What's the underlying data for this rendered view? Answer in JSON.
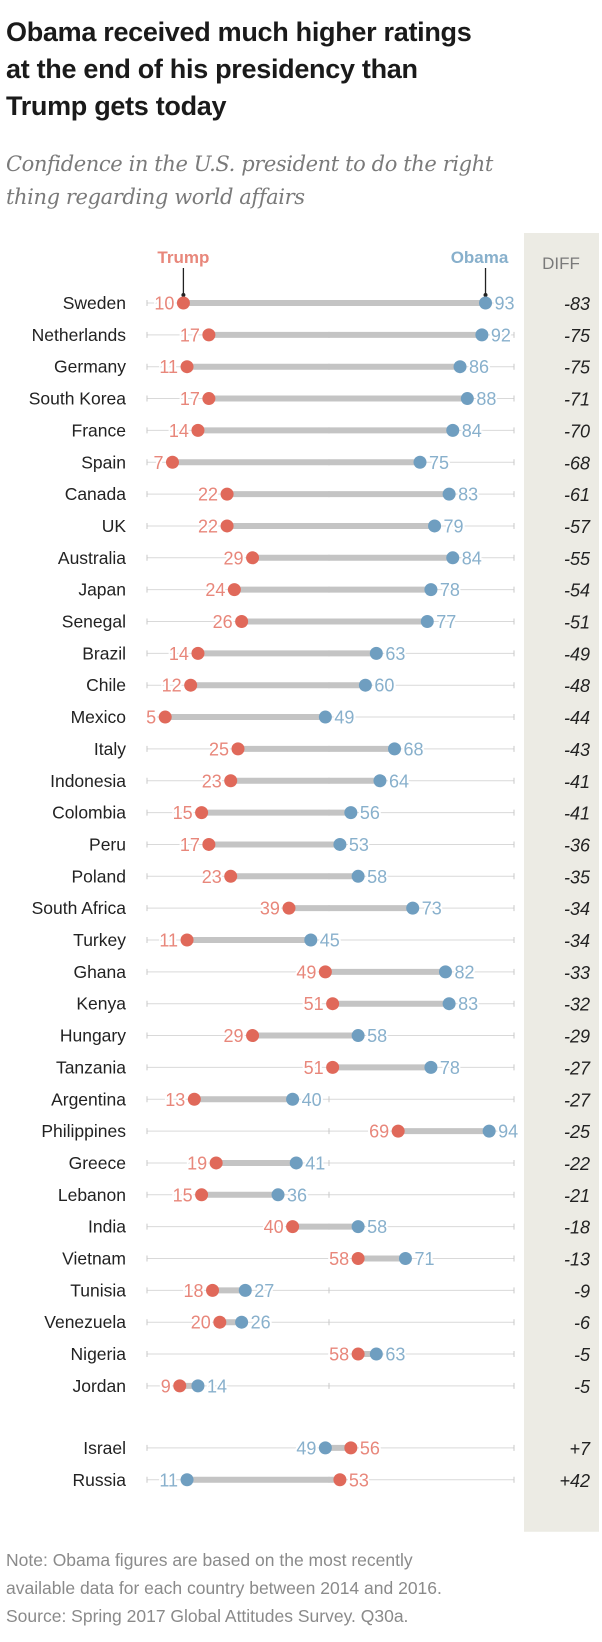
{
  "title": "Obama received much higher ratings at the end of his presidency than Trump gets today",
  "title_lines": [
    "Obama received much higher ratings",
    "at the end of his presidency than",
    "Trump gets today"
  ],
  "subtitle_lines": [
    "Confidence in the U.S. president to do the right",
    "thing regarding world affairs"
  ],
  "note_lines": [
    "Note: Obama figures are based on the most recently",
    "available data for each country between 2014 and 2016.",
    "Source: Spring 2017 Global Attitudes Survey. Q30a."
  ],
  "colors": {
    "trump": "#e0695a",
    "obama": "#6f9ec0",
    "trump_label": "#e8877b",
    "obama_label": "#88b0cc",
    "bar": "#c4c4c4",
    "axis": "#d9d9d9",
    "diff_panel": "#ecebe4"
  },
  "chart_data": {
    "type": "dot-range",
    "title": "Obama received much higher ratings at the end of his presidency than Trump gets today",
    "subtitle": "Confidence in the U.S. president to do the right thing regarding world affairs",
    "xlim": [
      0,
      100
    ],
    "series_names": [
      "Trump",
      "Obama"
    ],
    "diff_header": "DIFF",
    "legend": "top (labels pointing to first row)",
    "rows": [
      {
        "country": "Sweden",
        "trump": 10,
        "obama": 93,
        "diff": "-83"
      },
      {
        "country": "Netherlands",
        "trump": 17,
        "obama": 92,
        "diff": "-75"
      },
      {
        "country": "Germany",
        "trump": 11,
        "obama": 86,
        "diff": "-75"
      },
      {
        "country": "South Korea",
        "trump": 17,
        "obama": 88,
        "diff": "-71"
      },
      {
        "country": "France",
        "trump": 14,
        "obama": 84,
        "diff": "-70"
      },
      {
        "country": "Spain",
        "trump": 7,
        "obama": 75,
        "diff": "-68"
      },
      {
        "country": "Canada",
        "trump": 22,
        "obama": 83,
        "diff": "-61"
      },
      {
        "country": "UK",
        "trump": 22,
        "obama": 79,
        "diff": "-57"
      },
      {
        "country": "Australia",
        "trump": 29,
        "obama": 84,
        "diff": "-55"
      },
      {
        "country": "Japan",
        "trump": 24,
        "obama": 78,
        "diff": "-54"
      },
      {
        "country": "Senegal",
        "trump": 26,
        "obama": 77,
        "diff": "-51"
      },
      {
        "country": "Brazil",
        "trump": 14,
        "obama": 63,
        "diff": "-49"
      },
      {
        "country": "Chile",
        "trump": 12,
        "obama": 60,
        "diff": "-48"
      },
      {
        "country": "Mexico",
        "trump": 5,
        "obama": 49,
        "diff": "-44"
      },
      {
        "country": "Italy",
        "trump": 25,
        "obama": 68,
        "diff": "-43"
      },
      {
        "country": "Indonesia",
        "trump": 23,
        "obama": 64,
        "diff": "-41"
      },
      {
        "country": "Colombia",
        "trump": 15,
        "obama": 56,
        "diff": "-41"
      },
      {
        "country": "Peru",
        "trump": 17,
        "obama": 53,
        "diff": "-36"
      },
      {
        "country": "Poland",
        "trump": 23,
        "obama": 58,
        "diff": "-35"
      },
      {
        "country": "South Africa",
        "trump": 39,
        "obama": 73,
        "diff": "-34"
      },
      {
        "country": "Turkey",
        "trump": 11,
        "obama": 45,
        "diff": "-34"
      },
      {
        "country": "Ghana",
        "trump": 49,
        "obama": 82,
        "diff": "-33"
      },
      {
        "country": "Kenya",
        "trump": 51,
        "obama": 83,
        "diff": "-32"
      },
      {
        "country": "Hungary",
        "trump": 29,
        "obama": 58,
        "diff": "-29"
      },
      {
        "country": "Tanzania",
        "trump": 51,
        "obama": 78,
        "diff": "-27"
      },
      {
        "country": "Argentina",
        "trump": 13,
        "obama": 40,
        "diff": "-27"
      },
      {
        "country": "Philippines",
        "trump": 69,
        "obama": 94,
        "diff": "-25"
      },
      {
        "country": "Greece",
        "trump": 19,
        "obama": 41,
        "diff": "-22"
      },
      {
        "country": "Lebanon",
        "trump": 15,
        "obama": 36,
        "diff": "-21"
      },
      {
        "country": "India",
        "trump": 40,
        "obama": 58,
        "diff": "-18"
      },
      {
        "country": "Vietnam",
        "trump": 58,
        "obama": 71,
        "diff": "-13"
      },
      {
        "country": "Tunisia",
        "trump": 18,
        "obama": 27,
        "diff": "-9"
      },
      {
        "country": "Venezuela",
        "trump": 20,
        "obama": 26,
        "diff": "-6"
      },
      {
        "country": "Nigeria",
        "trump": 58,
        "obama": 63,
        "diff": "-5"
      },
      {
        "country": "Jordan",
        "trump": 9,
        "obama": 14,
        "diff": "-5"
      },
      {
        "country": "Israel",
        "trump": 56,
        "obama": 49,
        "diff": "+7",
        "group": 2
      },
      {
        "country": "Russia",
        "trump": 53,
        "obama": 11,
        "diff": "+42",
        "group": 2
      }
    ]
  }
}
